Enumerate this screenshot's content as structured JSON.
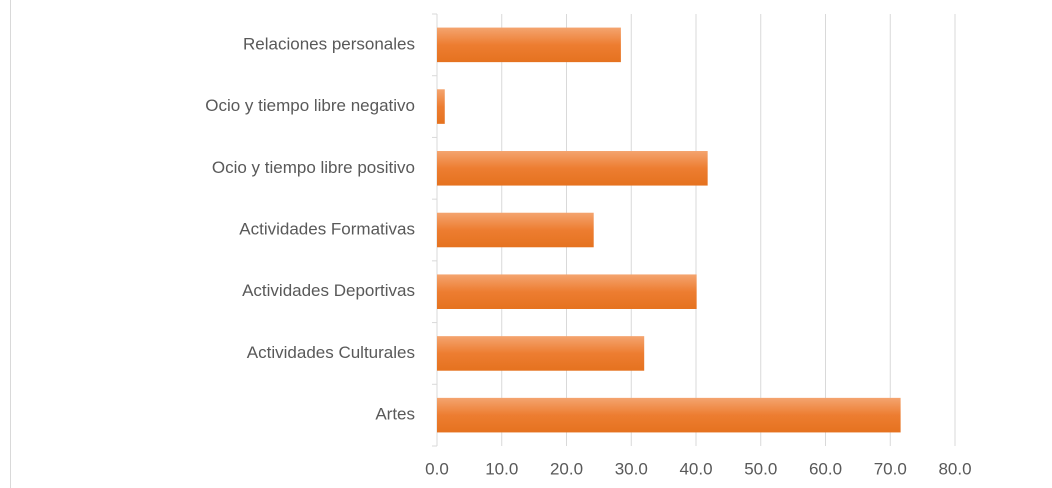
{
  "chart_data": {
    "type": "bar",
    "orientation": "horizontal",
    "categories": [
      "Relaciones personales",
      "Ocio y tiempo libre negativo",
      "Ocio y tiempo libre positivo",
      "Actividades Formativas",
      "Actividades Deportivas",
      "Actividades Culturales",
      "Artes"
    ],
    "values": [
      28.4,
      1.2,
      41.8,
      24.2,
      40.1,
      32.0,
      71.6
    ],
    "color": "#ed7d31",
    "xlim": [
      0,
      80
    ],
    "xticks": [
      {
        "value": 0,
        "label": "0.0"
      },
      {
        "value": 10,
        "label": "10.0"
      },
      {
        "value": 20,
        "label": "20.0"
      },
      {
        "value": 30,
        "label": "30.0"
      },
      {
        "value": 40,
        "label": "40.0"
      },
      {
        "value": 50,
        "label": "50.0"
      },
      {
        "value": 60,
        "label": "60.0"
      },
      {
        "value": 70,
        "label": "70.0"
      },
      {
        "value": 80,
        "label": "80.0"
      }
    ],
    "grid": true
  }
}
